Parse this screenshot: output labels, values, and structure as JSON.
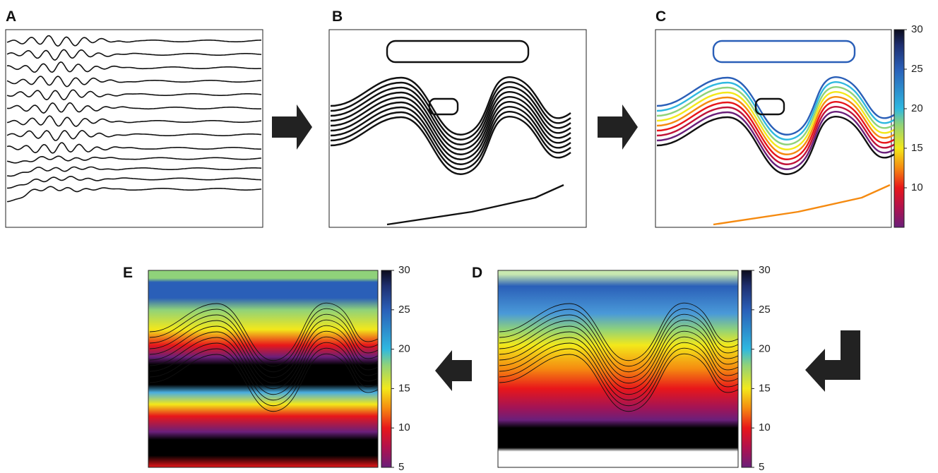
{
  "panels": [
    {
      "label": "A"
    },
    {
      "label": "B"
    },
    {
      "label": "C",
      "colorbar": {
        "lim": [
          5,
          30
        ],
        "ticks": [
          10,
          15,
          20,
          25,
          30
        ]
      }
    },
    {
      "label": "D",
      "colorbar": {
        "lim": [
          5,
          30
        ],
        "ticks": [
          5,
          10,
          15,
          20,
          25,
          30
        ]
      }
    },
    {
      "label": "E",
      "colorbar": {
        "lim": [
          5,
          30
        ],
        "ticks": [
          5,
          10,
          15,
          20,
          25,
          30
        ]
      }
    }
  ]
}
